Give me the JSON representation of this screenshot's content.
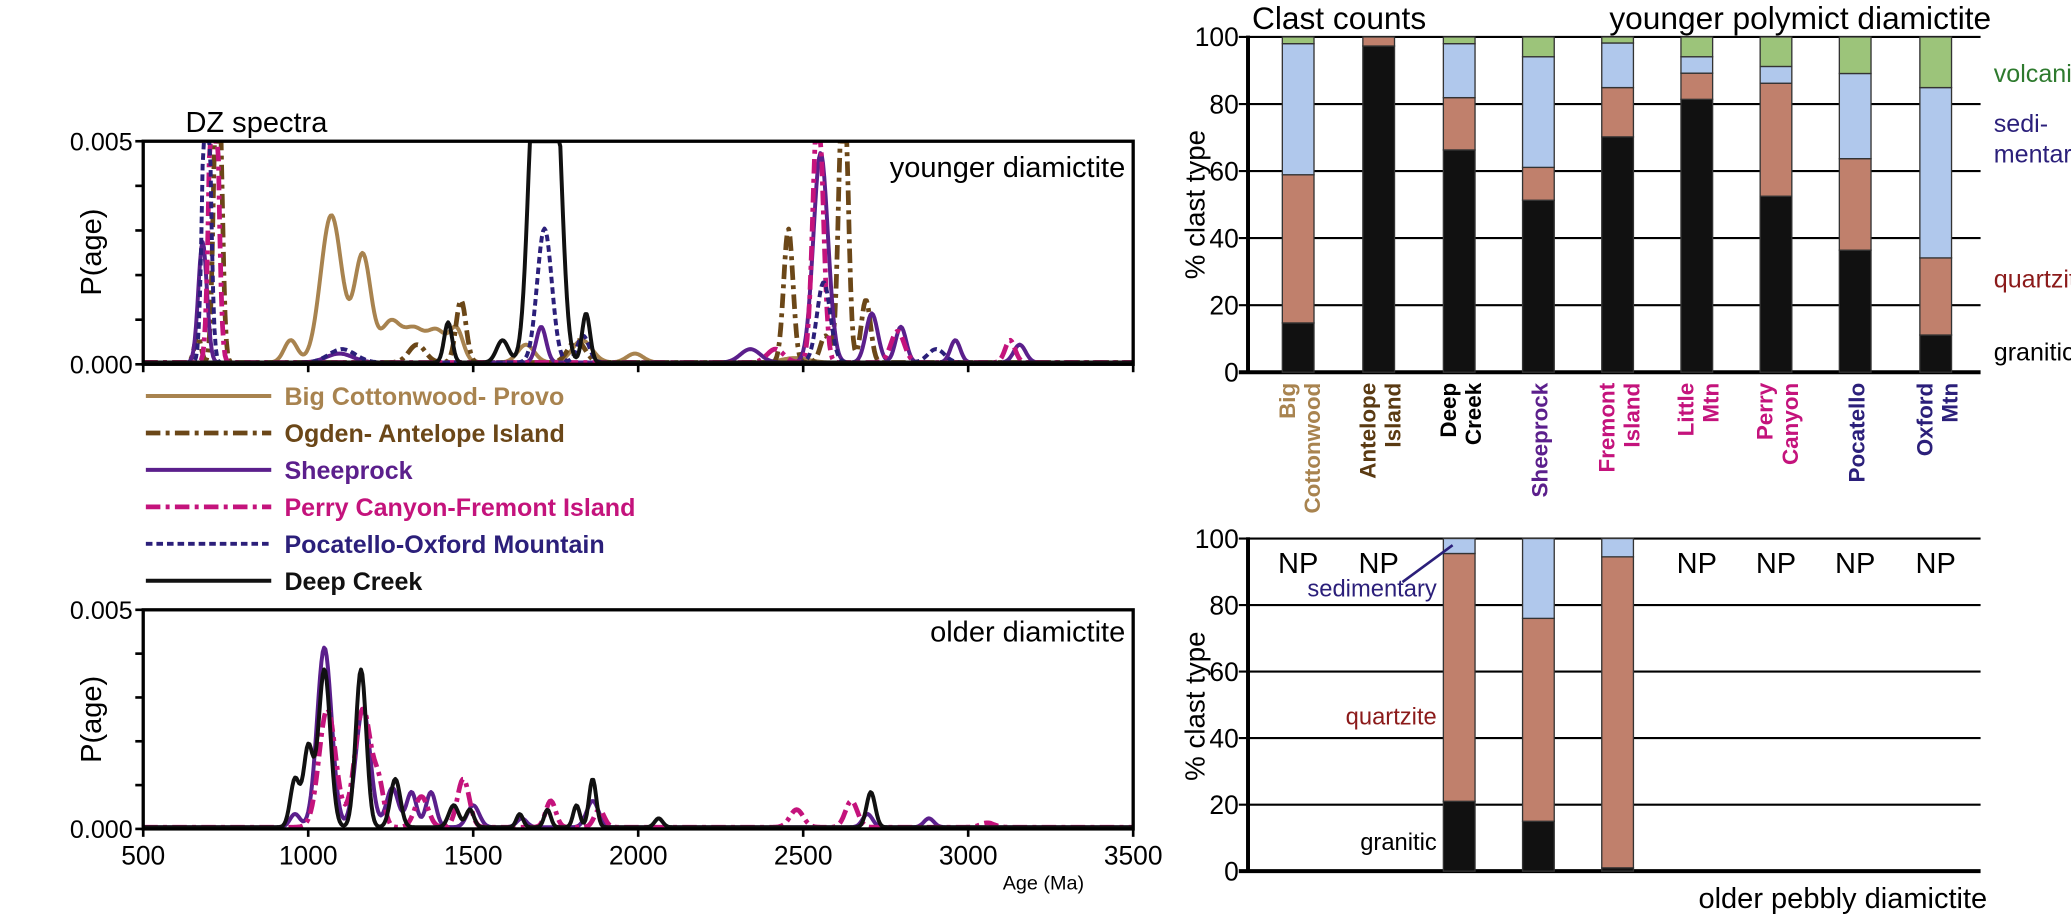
{
  "chart_data": [
    {
      "type": "line",
      "title": "DZ spectra",
      "panel_label": "younger diamictite",
      "ylabel": "P(age)",
      "xlim": [
        500,
        3500
      ],
      "ylim": [
        0,
        0.005
      ],
      "y_tick_labels": [
        "0.000",
        "0.005"
      ],
      "series": [
        {
          "name": "Big Cottonwood- Provo",
          "color": "#a8834f",
          "style": "solid",
          "peaks": [
            [
              947,
              0.0005,
              20
            ],
            [
              1070,
              0.0033,
              32
            ],
            [
              1165,
              0.0024,
              25
            ],
            [
              1250,
              0.0009,
              30
            ],
            [
              1320,
              0.0007,
              30
            ],
            [
              1390,
              0.0007,
              30
            ],
            [
              1450,
              0.0007,
              20
            ],
            [
              1660,
              0.0004,
              25
            ],
            [
              1830,
              0.0005,
              30
            ],
            [
              1990,
              0.0002,
              25
            ],
            [
              2475,
              0.0001,
              40
            ]
          ]
        },
        {
          "name": "Ogden- Antelope Island",
          "color": "#6b4718",
          "style": "dashdot",
          "peaks": [
            [
              665,
              0.0006,
              10
            ],
            [
              726,
              0.008,
              11
            ],
            [
              1330,
              0.0004,
              25
            ],
            [
              1463,
              0.0014,
              15
            ],
            [
              1813,
              0.0005,
              25
            ],
            [
              2455,
              0.003,
              14
            ],
            [
              2567,
              0.0006,
              15
            ],
            [
              2622,
              0.007,
              13
            ],
            [
              2690,
              0.0014,
              14
            ]
          ]
        },
        {
          "name": "Sheeprock",
          "color": "#5b1f8c",
          "style": "solid",
          "peaks": [
            [
              680,
              0.0027,
              13
            ],
            [
              1095,
              0.0002,
              40
            ],
            [
              1706,
              0.0008,
              15
            ],
            [
              2340,
              0.0003,
              30
            ],
            [
              2553,
              0.0047,
              22
            ],
            [
              2708,
              0.0011,
              18
            ],
            [
              2796,
              0.0008,
              16
            ],
            [
              2961,
              0.0005,
              15
            ],
            [
              3156,
              0.0004,
              18
            ]
          ]
        },
        {
          "name": "Perry Canyon-Fremont Island",
          "color": "#c4137c",
          "style": "dashdot",
          "peaks": [
            [
              714,
              0.009,
              12
            ],
            [
              2416,
              0.0003,
              25
            ],
            [
              2545,
              0.006,
              15
            ],
            [
              2786,
              0.0007,
              20
            ],
            [
              3127,
              0.0005,
              15
            ]
          ]
        },
        {
          "name": "Pocatello-Oxford Mountain",
          "color": "#2b1f7a",
          "style": "dashed",
          "peaks": [
            [
              692,
              0.008,
              11
            ],
            [
              1103,
              0.0003,
              40
            ],
            [
              1716,
              0.003,
              22
            ],
            [
              1833,
              0.0006,
              18
            ],
            [
              2562,
              0.0018,
              20
            ],
            [
              2903,
              0.0003,
              25
            ]
          ]
        },
        {
          "name": "Deep Creek",
          "color": "#111111",
          "style": "solid",
          "peaks": [
            [
              1424,
              0.0009,
              12
            ],
            [
              1589,
              0.0005,
              18
            ],
            [
              1690,
              0.007,
              22
            ],
            [
              1745,
              0.007,
              22
            ],
            [
              1842,
              0.0011,
              12
            ]
          ]
        }
      ]
    },
    {
      "type": "line",
      "panel_label": "older diamictite",
      "xlabel": "Age (Ma)",
      "ylabel": "P(age)",
      "xlim": [
        500,
        3500
      ],
      "ylim": [
        0,
        0.005
      ],
      "y_tick_labels": [
        "0.000",
        "0.005"
      ],
      "x_tick_labels": [
        "500",
        "1000",
        "1500",
        "2000",
        "2500",
        "3000",
        "3500"
      ],
      "series": [
        {
          "name": "Sheeprock",
          "color": "#5b1f8c",
          "style": "solid",
          "peaks": [
            [
              960,
              0.0003,
              15
            ],
            [
              1049,
              0.0041,
              22
            ],
            [
              1166,
              0.0027,
              22
            ],
            [
              1255,
              0.0009,
              18
            ],
            [
              1313,
              0.0008,
              15
            ],
            [
              1372,
              0.0008,
              15
            ],
            [
              1500,
              0.0005,
              18
            ],
            [
              1647,
              0.0002,
              15
            ],
            [
              1862,
              0.0006,
              18
            ],
            [
              2695,
              0.0003,
              15
            ],
            [
              2881,
              0.0002,
              15
            ]
          ]
        },
        {
          "name": "Perry Canyon-Fremont Island",
          "color": "#c4137c",
          "style": "dashdot",
          "peaks": [
            [
              1058,
              0.0027,
              25
            ],
            [
              1166,
              0.0027,
              25
            ],
            [
              1215,
              0.0008,
              15
            ],
            [
              1343,
              0.0007,
              20
            ],
            [
              1470,
              0.0011,
              18
            ],
            [
              1735,
              0.0006,
              15
            ],
            [
              1882,
              0.0004,
              15
            ],
            [
              2480,
              0.0004,
              20
            ],
            [
              2646,
              0.0006,
              18
            ],
            [
              3058,
              0.0001,
              20
            ]
          ]
        },
        {
          "name": "Deep Creek",
          "color": "#111111",
          "style": "solid",
          "peaks": [
            [
              960,
              0.0011,
              14
            ],
            [
              1000,
              0.0018,
              14
            ],
            [
              1049,
              0.0036,
              18
            ],
            [
              1160,
              0.0036,
              16
            ],
            [
              1264,
              0.0011,
              15
            ],
            [
              1441,
              0.0005,
              15
            ],
            [
              1490,
              0.0004,
              12
            ],
            [
              1641,
              0.0003,
              10
            ],
            [
              1725,
              0.0004,
              10
            ],
            [
              1813,
              0.0005,
              10
            ],
            [
              1862,
              0.0011,
              11
            ],
            [
              2062,
              0.0002,
              12
            ],
            [
              2705,
              0.0008,
              13
            ]
          ]
        }
      ]
    },
    {
      "type": "bar",
      "stacked": true,
      "title": "Clast counts",
      "panel_label": "younger polymict diamictite",
      "ylabel": "% clast type",
      "ylim": [
        0,
        100
      ],
      "y_tick_labels": [
        "0",
        "20",
        "40",
        "60",
        "80",
        "100"
      ],
      "grid": true,
      "categories": [
        {
          "lines": [
            "Big",
            "Cottonwood"
          ],
          "color": "#a8834f"
        },
        {
          "lines": [
            "Antelope",
            "Island"
          ],
          "color": "#5a3a12"
        },
        {
          "lines": [
            "Deep",
            "Creek"
          ],
          "color": "#000000"
        },
        {
          "lines": [
            "Sheeprock"
          ],
          "color": "#5b1f8c"
        },
        {
          "lines": [
            "Fremont",
            "Island"
          ],
          "color": "#c4137c"
        },
        {
          "lines": [
            "Little",
            "Mtn"
          ],
          "color": "#c4137c"
        },
        {
          "lines": [
            "Perry",
            "Canyon"
          ],
          "color": "#c4137c"
        },
        {
          "lines": [
            "Pocatello"
          ],
          "color": "#2b1f7a"
        },
        {
          "lines": [
            "Oxford",
            "Mtn"
          ],
          "color": "#2b1f7a"
        }
      ],
      "components": [
        {
          "name": "granitic",
          "fill": "#111111",
          "label_color": "#000000",
          "label_lines": [
            "granitic"
          ]
        },
        {
          "name": "quartzite",
          "fill": "#c0806c",
          "label_color": "#8b1a1a",
          "label_lines": [
            "quartzite"
          ]
        },
        {
          "name": "sedimentary",
          "fill": "#b0c8ec",
          "label_color": "#2b1f7a",
          "label_lines": [
            "sedi-",
            "mentary"
          ]
        },
        {
          "name": "volcanic",
          "fill": "#9cc47a",
          "label_color": "#2e7a2e",
          "label_lines": [
            "volcanic"
          ]
        }
      ],
      "values": [
        [
          14.7,
          44.2,
          39.1,
          2.0
        ],
        [
          97.3,
          2.7,
          0,
          0
        ],
        [
          66.3,
          15.6,
          16.1,
          2.0
        ],
        [
          51.3,
          9.8,
          33.0,
          5.9
        ],
        [
          70.2,
          14.7,
          13.3,
          1.8
        ],
        [
          81.4,
          7.8,
          4.9,
          5.9
        ],
        [
          52.5,
          33.7,
          5.0,
          8.8
        ],
        [
          36.4,
          27.3,
          25.4,
          10.9
        ],
        [
          11.1,
          23.0,
          50.8,
          15.1
        ]
      ]
    },
    {
      "type": "bar",
      "stacked": true,
      "panel_label": "older pebbly diamictite",
      "ylabel": "% clast type",
      "ylim": [
        0,
        100
      ],
      "y_tick_labels": [
        "0",
        "20",
        "40",
        "60",
        "80",
        "100"
      ],
      "grid": true,
      "missing_label": "NP",
      "component_labels": {
        "sedimentary": "sedimentary",
        "quartzite": "quartzite",
        "granitic": "granitic"
      },
      "values": [
        null,
        null,
        [
          21.0,
          74.5,
          4.5,
          0
        ],
        [
          15.0,
          61.0,
          24.0,
          0
        ],
        [
          1.0,
          93.5,
          5.5,
          0
        ],
        null,
        null,
        null,
        null
      ]
    }
  ]
}
